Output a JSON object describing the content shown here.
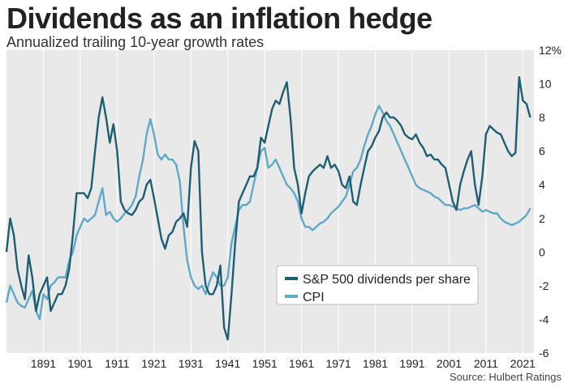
{
  "header": {
    "title": "Dividends as an inflation hedge",
    "subtitle": "Annualized trailing 10-year growth rates"
  },
  "footer": {
    "source": "Source: Hulbert Ratings"
  },
  "chart_data": {
    "type": "line",
    "title": "Dividends as an inflation hedge",
    "subtitle": "Annualized trailing 10-year growth rates",
    "xlabel": "",
    "ylabel": "",
    "xlim": [
      1881,
      2024
    ],
    "ylim": [
      -6,
      12
    ],
    "x_ticks": [
      "1891",
      "1901",
      "1911",
      "1921",
      "1931",
      "1941",
      "1951",
      "1961",
      "1971",
      "1981",
      "1991",
      "2001",
      "2011",
      "2021"
    ],
    "x_tick_values": [
      1891,
      1901,
      1911,
      1921,
      1931,
      1941,
      1951,
      1961,
      1971,
      1981,
      1991,
      2001,
      2011,
      2021
    ],
    "y_ticks": [
      "12%",
      "10",
      "8",
      "6",
      "4",
      "2",
      "0",
      "-2",
      "-4",
      "-6"
    ],
    "y_tick_values": [
      12,
      10,
      8,
      6,
      4,
      2,
      0,
      -2,
      -4,
      -6
    ],
    "grid": "vertical",
    "legend_position": "lower-right",
    "series": [
      {
        "name": "S&P 500 dividends per share",
        "color": "#1d5e72",
        "x": [
          1881,
          1882,
          1883,
          1884,
          1885,
          1886,
          1887,
          1888,
          1889,
          1890,
          1891,
          1892,
          1893,
          1894,
          1895,
          1896,
          1897,
          1898,
          1899,
          1900,
          1901,
          1902,
          1903,
          1904,
          1905,
          1906,
          1907,
          1908,
          1909,
          1910,
          1911,
          1912,
          1913,
          1914,
          1915,
          1916,
          1917,
          1918,
          1919,
          1920,
          1921,
          1922,
          1923,
          1924,
          1925,
          1926,
          1927,
          1928,
          1929,
          1930,
          1931,
          1932,
          1933,
          1934,
          1935,
          1936,
          1937,
          1938,
          1939,
          1940,
          1941,
          1942,
          1943,
          1944,
          1945,
          1946,
          1947,
          1948,
          1949,
          1950,
          1951,
          1952,
          1953,
          1954,
          1955,
          1956,
          1957,
          1958,
          1959,
          1960,
          1961,
          1962,
          1963,
          1964,
          1965,
          1966,
          1967,
          1968,
          1969,
          1970,
          1971,
          1972,
          1973,
          1974,
          1975,
          1976,
          1977,
          1978,
          1979,
          1980,
          1981,
          1982,
          1983,
          1984,
          1985,
          1986,
          1987,
          1988,
          1989,
          1990,
          1991,
          1992,
          1993,
          1994,
          1995,
          1996,
          1997,
          1998,
          1999,
          2000,
          2001,
          2002,
          2003,
          2004,
          2005,
          2006,
          2007,
          2008,
          2009,
          2010,
          2011,
          2012,
          2013,
          2014,
          2015,
          2016,
          2017,
          2018,
          2019,
          2020,
          2021,
          2022,
          2023
        ],
        "values": [
          0.0,
          2.0,
          1.0,
          -1.0,
          -2.0,
          -2.8,
          -0.2,
          -1.5,
          -3.5,
          -2.5,
          -2.0,
          -1.5,
          -3.5,
          -3.0,
          -2.5,
          -2.5,
          -2.0,
          -1.0,
          1.0,
          3.5,
          3.5,
          3.5,
          3.2,
          3.8,
          6.0,
          8.0,
          9.2,
          8.0,
          6.5,
          7.6,
          6.0,
          3.0,
          2.5,
          2.3,
          2.2,
          2.5,
          3.0,
          3.2,
          4.0,
          4.3,
          3.2,
          2.0,
          0.8,
          0.2,
          1.0,
          1.2,
          1.8,
          2.0,
          2.3,
          1.5,
          5.0,
          6.6,
          6.0,
          0.0,
          -2.0,
          -2.5,
          -2.5,
          -2.0,
          -0.8,
          -4.5,
          -5.2,
          -2.5,
          0.5,
          3.0,
          3.5,
          4.0,
          4.5,
          4.5,
          5.0,
          6.8,
          6.5,
          7.5,
          8.5,
          9.0,
          8.8,
          9.5,
          10.1,
          8.0,
          5.0,
          4.0,
          2.3,
          3.5,
          4.5,
          4.8,
          5.0,
          5.2,
          5.0,
          5.7,
          5.0,
          5.2,
          4.8,
          4.0,
          3.8,
          4.5,
          3.0,
          2.8,
          4.0,
          5.0,
          6.0,
          6.3,
          6.8,
          7.2,
          8.0,
          8.3,
          8.0,
          8.0,
          7.8,
          7.5,
          7.0,
          6.8,
          6.7,
          7.0,
          6.5,
          6.2,
          5.7,
          5.8,
          5.5,
          5.5,
          5.2,
          5.0,
          4.0,
          3.0,
          2.5,
          4.0,
          4.8,
          5.5,
          6.0,
          4.0,
          2.8,
          4.5,
          7.0,
          7.5,
          7.3,
          7.1,
          7.0,
          6.5,
          6.0,
          5.7,
          5.9,
          10.4,
          9.0,
          8.8,
          8.0
        ]
      },
      {
        "name": "CPI",
        "color": "#5fa8c6",
        "x": [
          1881,
          1882,
          1883,
          1884,
          1885,
          1886,
          1887,
          1888,
          1889,
          1890,
          1891,
          1892,
          1893,
          1894,
          1895,
          1896,
          1897,
          1898,
          1899,
          1900,
          1901,
          1902,
          1903,
          1904,
          1905,
          1906,
          1907,
          1908,
          1909,
          1910,
          1911,
          1912,
          1913,
          1914,
          1915,
          1916,
          1917,
          1918,
          1919,
          1920,
          1921,
          1922,
          1923,
          1924,
          1925,
          1926,
          1927,
          1928,
          1929,
          1930,
          1931,
          1932,
          1933,
          1934,
          1935,
          1936,
          1937,
          1938,
          1939,
          1940,
          1941,
          1942,
          1943,
          1944,
          1945,
          1946,
          1947,
          1948,
          1949,
          1950,
          1951,
          1952,
          1953,
          1954,
          1955,
          1956,
          1957,
          1958,
          1959,
          1960,
          1961,
          1962,
          1963,
          1964,
          1965,
          1966,
          1967,
          1968,
          1969,
          1970,
          1971,
          1972,
          1973,
          1974,
          1975,
          1976,
          1977,
          1978,
          1979,
          1980,
          1981,
          1982,
          1983,
          1984,
          1985,
          1986,
          1987,
          1988,
          1989,
          1990,
          1991,
          1992,
          1993,
          1994,
          1995,
          1996,
          1997,
          1998,
          1999,
          2000,
          2001,
          2002,
          2003,
          2004,
          2005,
          2006,
          2007,
          2008,
          2009,
          2010,
          2011,
          2012,
          2013,
          2014,
          2015,
          2016,
          2017,
          2018,
          2019,
          2020,
          2021,
          2022,
          2023
        ],
        "values": [
          -3.0,
          -2.0,
          -2.5,
          -3.0,
          -3.2,
          -3.3,
          -2.8,
          -2.3,
          -3.5,
          -4.0,
          -2.5,
          -2.8,
          -2.0,
          -1.8,
          -1.5,
          -1.5,
          -1.5,
          -0.5,
          0.0,
          1.0,
          1.5,
          2.0,
          1.8,
          2.0,
          2.2,
          3.0,
          3.8,
          2.2,
          2.4,
          2.0,
          1.8,
          2.0,
          2.3,
          2.5,
          2.8,
          3.3,
          4.5,
          5.5,
          7.0,
          7.9,
          7.0,
          5.8,
          5.5,
          5.8,
          5.5,
          5.5,
          5.2,
          4.2,
          1.5,
          -0.5,
          -1.5,
          -2.0,
          -2.2,
          -2.0,
          -2.5,
          -1.8,
          -1.2,
          -1.5,
          -2.0,
          -2.0,
          -1.5,
          0.5,
          1.5,
          2.5,
          2.8,
          2.8,
          3.0,
          4.0,
          5.0,
          6.0,
          6.2,
          5.0,
          5.2,
          5.5,
          5.0,
          4.5,
          4.0,
          3.8,
          3.5,
          3.0,
          2.0,
          1.5,
          1.5,
          1.3,
          1.5,
          1.7,
          1.8,
          2.0,
          2.3,
          2.5,
          2.7,
          3.0,
          3.3,
          4.0,
          4.8,
          5.0,
          5.5,
          6.3,
          7.0,
          7.5,
          8.2,
          8.7,
          8.3,
          7.8,
          7.5,
          7.0,
          6.5,
          6.0,
          5.5,
          5.0,
          4.5,
          4.0,
          3.8,
          3.7,
          3.6,
          3.5,
          3.3,
          3.2,
          3.0,
          2.8,
          2.8,
          2.7,
          2.6,
          2.5,
          2.6,
          2.6,
          2.7,
          2.8,
          2.6,
          2.4,
          2.5,
          2.4,
          2.3,
          2.3,
          2.0,
          1.8,
          1.7,
          1.6,
          1.7,
          1.8,
          2.0,
          2.2,
          2.6
        ]
      }
    ]
  }
}
